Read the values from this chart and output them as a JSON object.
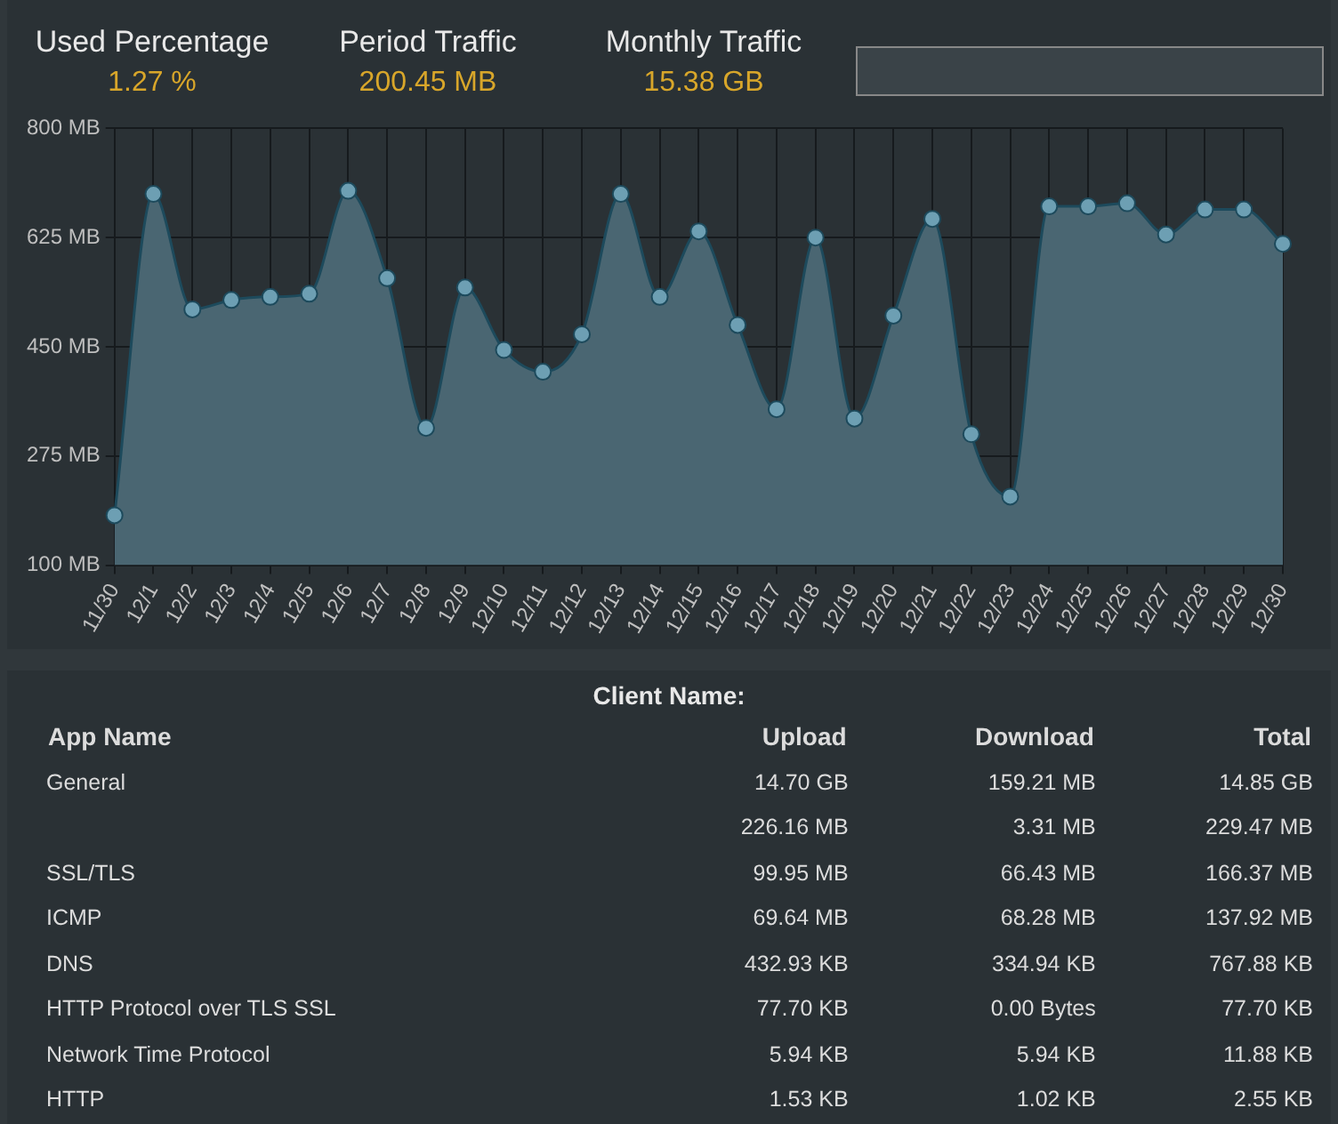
{
  "chart_data": [
    {
      "type": "other",
      "categories": [
        "Used Percentage",
        "Period Traffic",
        "Monthly Traffic"
      ],
      "value_labels": [
        "1.27 %",
        "200.45 MB",
        "15.38 GB"
      ]
    },
    {
      "type": "area",
      "categories": [
        "11/30",
        "12/1",
        "12/2",
        "12/3",
        "12/4",
        "12/5",
        "12/6",
        "12/7",
        "12/8",
        "12/9",
        "12/10",
        "12/11",
        "12/12",
        "12/13",
        "12/14",
        "12/15",
        "12/16",
        "12/17",
        "12/18",
        "12/19",
        "12/20",
        "12/21",
        "12/22",
        "12/23",
        "12/24",
        "12/25",
        "12/26",
        "12/27",
        "12/28",
        "12/29",
        "12/30"
      ],
      "series": [
        {
          "color": "#4a6672",
          "values": [
            180,
            695,
            510,
            525,
            530,
            535,
            700,
            560,
            320,
            545,
            445,
            410,
            470,
            695,
            530,
            635,
            485,
            350,
            625,
            335,
            500,
            655,
            310,
            210,
            675,
            675,
            680,
            630,
            670,
            670,
            615
          ]
        }
      ],
      "ylim": [
        100,
        800
      ],
      "yticks": [
        {
          "value": 100,
          "label": "100 MB"
        },
        {
          "value": 275,
          "label": "275 MB"
        },
        {
          "value": 450,
          "label": "450 MB"
        },
        {
          "value": 625,
          "label": "625 MB"
        },
        {
          "value": 800,
          "label": "800 MB"
        }
      ],
      "grid": true,
      "marker": "circle",
      "legend": false
    },
    {
      "type": "other",
      "title": "Client Name:",
      "legend_title": "App Name",
      "categories": [
        "General",
        null,
        "SSL/TLS",
        "ICMP",
        "DNS",
        "HTTP Protocol over TLS SSL",
        "Network Time Protocol",
        "HTTP"
      ],
      "annotations": [
        "Upload",
        "Download",
        "Total",
        "14.70 GB",
        "159.21 MB",
        "14.85 GB",
        "226.16 MB",
        "3.31 MB",
        "229.47 MB",
        "99.95 MB",
        "66.43 MB",
        "166.37 MB",
        "69.64 MB",
        "68.28 MB",
        "137.92 MB",
        "432.93 KB",
        "334.94 KB",
        "767.88 KB",
        "77.70 KB",
        "0.00 Bytes",
        "77.70 KB",
        "5.94 KB",
        "5.94 KB",
        "11.88 KB",
        "1.53 KB",
        "1.02 KB",
        "2.55 KB"
      ]
    }
  ]
}
